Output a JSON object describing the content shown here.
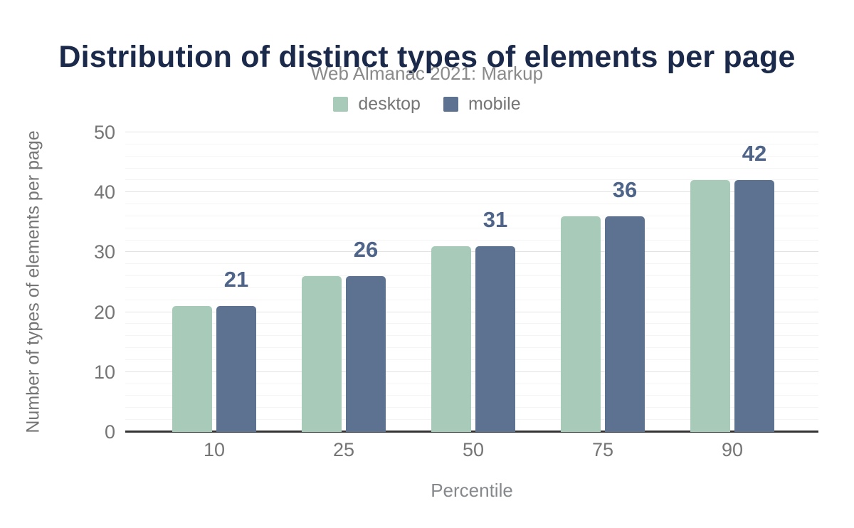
{
  "chart_data": {
    "type": "bar",
    "title": "Distribution of distinct types of elements per page",
    "subtitle": "Web Almanac 2021: Markup",
    "xlabel": "Percentile",
    "ylabel": "Number of types of elements per page",
    "categories": [
      "10",
      "25",
      "50",
      "75",
      "90"
    ],
    "series": [
      {
        "name": "desktop",
        "color": "#a8cab8",
        "values": [
          21,
          26,
          31,
          36,
          42
        ]
      },
      {
        "name": "mobile",
        "color": "#5d7191",
        "values": [
          21,
          26,
          31,
          36,
          42
        ]
      }
    ],
    "value_labels": {
      "series": "mobile",
      "values": [
        "21",
        "26",
        "31",
        "36",
        "42"
      ]
    },
    "ylim": [
      0,
      50
    ],
    "yticks": [
      0,
      10,
      20,
      30,
      40,
      50
    ],
    "minor_grid_step": 2,
    "grid": true,
    "legend_position": "top"
  },
  "colors": {
    "title": "#1b2a4a",
    "subtitle": "#8a8a8a",
    "axis_text": "#757575",
    "value_label": "#4f6489",
    "grid_major": "#e3e3e3",
    "grid_minor": "#f4f4f4",
    "baseline": "#333333",
    "background": "#ffffff"
  }
}
